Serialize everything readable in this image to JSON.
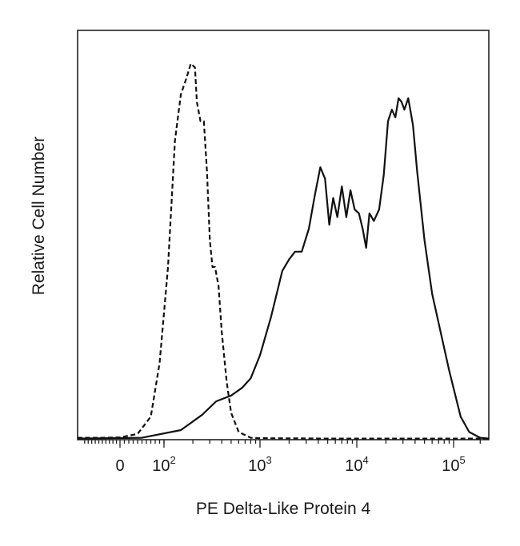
{
  "chart_data": {
    "type": "line",
    "title": "",
    "xlabel": "PE  Delta-Like Protein 4",
    "ylabel": "Relative Cell Number",
    "x_scale": "biexponential",
    "xlim": [
      -120,
      250000
    ],
    "ylim": [
      0,
      1.0
    ],
    "grid": false,
    "legend": "none",
    "x_ticks": [
      {
        "label": "0",
        "value": 0,
        "exp": ""
      },
      {
        "label": "10",
        "value": 100,
        "exp": "2"
      },
      {
        "label": "10",
        "value": 1000,
        "exp": "3"
      },
      {
        "label": "10",
        "value": 10000,
        "exp": "4"
      },
      {
        "label": "10",
        "value": 100000,
        "exp": "5"
      }
    ],
    "series": [
      {
        "line_style": "dashed",
        "color": "#111111",
        "x": [
          -120,
          -50,
          0,
          40,
          70,
          90,
          110,
          130,
          150,
          170,
          190,
          210,
          220,
          240,
          260,
          280,
          300,
          320,
          340,
          370,
          400,
          450,
          500,
          600,
          800,
          1000,
          5000,
          30000,
          250000
        ],
        "y": [
          0.005,
          0.005,
          0.006,
          0.015,
          0.06,
          0.2,
          0.45,
          0.78,
          0.9,
          0.94,
          0.98,
          0.97,
          0.88,
          0.83,
          0.83,
          0.7,
          0.52,
          0.45,
          0.45,
          0.4,
          0.28,
          0.15,
          0.07,
          0.02,
          0.005,
          0.004,
          0.003,
          0.003,
          0.003
        ]
      },
      {
        "line_style": "solid",
        "color": "#111111",
        "x": [
          -120,
          50,
          150,
          250,
          350,
          500,
          650,
          800,
          1000,
          1300,
          1700,
          2000,
          2300,
          2700,
          3200,
          3700,
          4200,
          4700,
          5200,
          5700,
          6300,
          7000,
          7800,
          8600,
          9500,
          10500,
          11500,
          12500,
          13500,
          15000,
          17000,
          19000,
          21000,
          23000,
          25000,
          27000,
          29000,
          31000,
          34000,
          38000,
          42000,
          50000,
          60000,
          75000,
          90000,
          120000,
          150000,
          200000,
          250000
        ],
        "y": [
          0.003,
          0.005,
          0.025,
          0.065,
          0.1,
          0.115,
          0.135,
          0.16,
          0.22,
          0.32,
          0.44,
          0.47,
          0.49,
          0.49,
          0.55,
          0.64,
          0.71,
          0.68,
          0.56,
          0.63,
          0.58,
          0.66,
          0.58,
          0.65,
          0.6,
          0.59,
          0.55,
          0.5,
          0.59,
          0.57,
          0.6,
          0.69,
          0.83,
          0.86,
          0.84,
          0.89,
          0.88,
          0.86,
          0.89,
          0.82,
          0.7,
          0.52,
          0.38,
          0.27,
          0.18,
          0.06,
          0.02,
          0.005,
          0.003
        ]
      }
    ]
  }
}
